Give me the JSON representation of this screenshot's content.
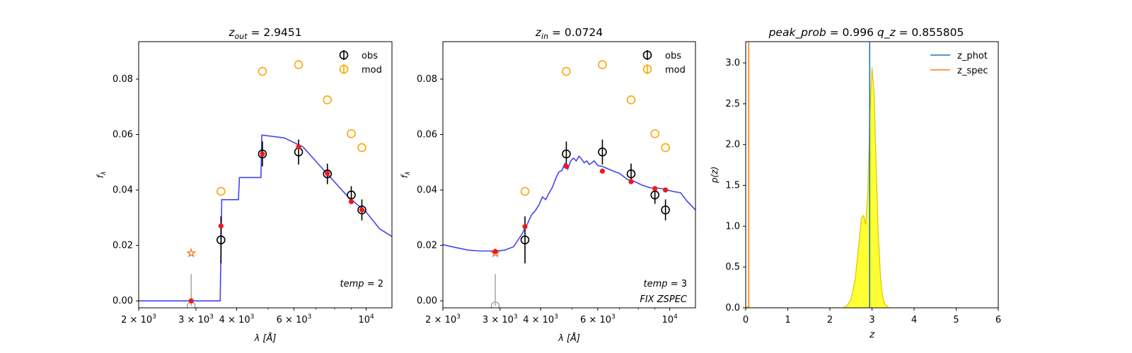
{
  "chart_data": [
    {
      "type": "scatter",
      "title_var": "z",
      "title_sub": "out",
      "title_value": "= 2.9451",
      "xlabel_sym": "λ",
      "xlabel_unit": "[Å]",
      "ylabel_sym": "f",
      "ylabel_sub": "λ",
      "x_scale": "log",
      "xlim": [
        2000,
        12000
      ],
      "ylim": [
        -0.0025,
        0.0935
      ],
      "x_ticks": [
        {
          "value": 2000,
          "base": "2 × 10",
          "exp": "3"
        },
        {
          "value": 3000,
          "base": "3 × 10",
          "exp": "3"
        },
        {
          "value": 4000,
          "base": "4 × 10",
          "exp": "3"
        },
        {
          "value": 6000,
          "base": "6 × 10",
          "exp": "3"
        },
        {
          "value": 10000,
          "base": "10",
          "exp": "4"
        }
      ],
      "y_ticks": [
        {
          "value": 0.0,
          "label": "0.00"
        },
        {
          "value": 0.02,
          "label": "0.02"
        },
        {
          "value": 0.04,
          "label": "0.04"
        },
        {
          "value": 0.06,
          "label": "0.06"
        },
        {
          "value": 0.08,
          "label": "0.08"
        }
      ],
      "legend": {
        "position": "top-right",
        "entries": [
          {
            "label": "obs",
            "color": "#000000"
          },
          {
            "label": "mod",
            "color": "#FFA500"
          }
        ]
      },
      "annotation_lines": [
        {
          "var": "temp",
          "value": "= 2"
        }
      ],
      "model_curve": {
        "color": "#3A3AF0",
        "points": [
          [
            2000,
            0.0
          ],
          [
            3560,
            0.0
          ],
          [
            3600,
            0.0365
          ],
          [
            4050,
            0.0365
          ],
          [
            4080,
            0.0445
          ],
          [
            4750,
            0.0445
          ],
          [
            4780,
            0.0598
          ],
          [
            5600,
            0.0588
          ],
          [
            6400,
            0.0555
          ],
          [
            7500,
            0.0465
          ],
          [
            8800,
            0.0375
          ],
          [
            10000,
            0.032
          ],
          [
            11000,
            0.026
          ],
          [
            12000,
            0.0232
          ]
        ]
      },
      "obs": [
        {
          "x": 2900,
          "y": -0.0018,
          "err": 0.0115,
          "upper_limit": true
        },
        {
          "x": 3580,
          "y": 0.022,
          "err": 0.0085
        },
        {
          "x": 4800,
          "y": 0.053,
          "err": 0.0045
        },
        {
          "x": 6200,
          "y": 0.0537,
          "err": 0.0045
        },
        {
          "x": 7600,
          "y": 0.0458,
          "err": 0.0037
        },
        {
          "x": 9000,
          "y": 0.0382,
          "err": 0.0032
        },
        {
          "x": 9700,
          "y": 0.0328,
          "err": 0.0038
        }
      ],
      "synthetic": [
        {
          "x": 2900,
          "y": 0.0
        },
        {
          "x": 3580,
          "y": 0.027
        },
        {
          "x": 4800,
          "y": 0.053
        },
        {
          "x": 6200,
          "y": 0.0555
        },
        {
          "x": 7600,
          "y": 0.046
        },
        {
          "x": 9000,
          "y": 0.0358
        },
        {
          "x": 9700,
          "y": 0.0328
        }
      ],
      "mod": [
        {
          "x": 3580,
          "y": 0.0395
        },
        {
          "x": 4800,
          "y": 0.0828
        },
        {
          "x": 6200,
          "y": 0.0852
        },
        {
          "x": 7600,
          "y": 0.0725
        },
        {
          "x": 9000,
          "y": 0.0603
        },
        {
          "x": 9700,
          "y": 0.0553
        }
      ],
      "star": {
        "x": 2900,
        "y": 0.0172
      }
    },
    {
      "type": "scatter",
      "title_var": "z",
      "title_sub": "in",
      "title_value": "= 0.0724",
      "xlabel_sym": "λ",
      "xlabel_unit": "[Å]",
      "ylabel_sym": "f",
      "ylabel_sub": "λ",
      "x_scale": "log",
      "xlim": [
        2000,
        12000
      ],
      "ylim": [
        -0.0025,
        0.0935
      ],
      "x_ticks": [
        {
          "value": 2000,
          "base": "2 × 10",
          "exp": "3"
        },
        {
          "value": 3000,
          "base": "3 × 10",
          "exp": "3"
        },
        {
          "value": 4000,
          "base": "4 × 10",
          "exp": "3"
        },
        {
          "value": 6000,
          "base": "6 × 10",
          "exp": "3"
        },
        {
          "value": 10000,
          "base": "10",
          "exp": "4"
        }
      ],
      "y_ticks": [
        {
          "value": 0.0,
          "label": "0.00"
        },
        {
          "value": 0.02,
          "label": "0.02"
        },
        {
          "value": 0.04,
          "label": "0.04"
        },
        {
          "value": 0.06,
          "label": "0.06"
        },
        {
          "value": 0.08,
          "label": "0.08"
        }
      ],
      "legend": {
        "position": "top-right",
        "entries": [
          {
            "label": "obs",
            "color": "#000000"
          },
          {
            "label": "mod",
            "color": "#FFA500"
          }
        ]
      },
      "annotation_lines": [
        {
          "var": "temp",
          "value": "= 3"
        },
        {
          "var": "FIX ZSPEC",
          "value": ""
        }
      ],
      "model_curve": {
        "color": "#3A3AF0",
        "points": [
          [
            2000,
            0.0203
          ],
          [
            2200,
            0.0192
          ],
          [
            2400,
            0.0183
          ],
          [
            2600,
            0.018
          ],
          [
            2900,
            0.018
          ],
          [
            3100,
            0.0183
          ],
          [
            3300,
            0.0195
          ],
          [
            3500,
            0.024
          ],
          [
            3650,
            0.028
          ],
          [
            3750,
            0.031
          ],
          [
            3850,
            0.0325
          ],
          [
            3950,
            0.0345
          ],
          [
            4050,
            0.0375
          ],
          [
            4150,
            0.0365
          ],
          [
            4250,
            0.039
          ],
          [
            4350,
            0.041
          ],
          [
            4450,
            0.044
          ],
          [
            4550,
            0.0465
          ],
          [
            4650,
            0.047
          ],
          [
            4750,
            0.0495
          ],
          [
            4850,
            0.0475
          ],
          [
            4950,
            0.0505
          ],
          [
            5050,
            0.0515
          ],
          [
            5150,
            0.0505
          ],
          [
            5250,
            0.0522
          ],
          [
            5350,
            0.0512
          ],
          [
            5450,
            0.0498
          ],
          [
            5550,
            0.0505
          ],
          [
            5650,
            0.0492
          ],
          [
            5750,
            0.0498
          ],
          [
            5850,
            0.0505
          ],
          [
            6000,
            0.0488
          ],
          [
            6200,
            0.0485
          ],
          [
            6400,
            0.0478
          ],
          [
            6700,
            0.0468
          ],
          [
            7000,
            0.046
          ],
          [
            7400,
            0.0438
          ],
          [
            7800,
            0.043
          ],
          [
            8200,
            0.0418
          ],
          [
            8700,
            0.0408
          ],
          [
            9200,
            0.0407
          ],
          [
            9700,
            0.0402
          ],
          [
            10200,
            0.0395
          ],
          [
            10800,
            0.039
          ],
          [
            11300,
            0.036
          ],
          [
            12000,
            0.0328
          ]
        ]
      },
      "obs": [
        {
          "x": 2900,
          "y": -0.0018,
          "err": 0.0115,
          "upper_limit": true
        },
        {
          "x": 3580,
          "y": 0.022,
          "err": 0.0085
        },
        {
          "x": 4800,
          "y": 0.053,
          "err": 0.0045
        },
        {
          "x": 6200,
          "y": 0.0537,
          "err": 0.0045
        },
        {
          "x": 7600,
          "y": 0.0458,
          "err": 0.0037
        },
        {
          "x": 9000,
          "y": 0.0382,
          "err": 0.0032
        },
        {
          "x": 9700,
          "y": 0.0328,
          "err": 0.0038
        }
      ],
      "synthetic": [
        {
          "x": 2900,
          "y": 0.0178
        },
        {
          "x": 3580,
          "y": 0.0268
        },
        {
          "x": 4800,
          "y": 0.0485
        },
        {
          "x": 6200,
          "y": 0.0468
        },
        {
          "x": 7600,
          "y": 0.043
        },
        {
          "x": 9000,
          "y": 0.0405
        },
        {
          "x": 9700,
          "y": 0.04
        }
      ],
      "mod": [
        {
          "x": 3580,
          "y": 0.0395
        },
        {
          "x": 4800,
          "y": 0.0828
        },
        {
          "x": 6200,
          "y": 0.0852
        },
        {
          "x": 7600,
          "y": 0.0725
        },
        {
          "x": 9000,
          "y": 0.0603
        },
        {
          "x": 9700,
          "y": 0.0553
        }
      ],
      "star": {
        "x": 2900,
        "y": 0.0172
      }
    },
    {
      "type": "line",
      "title_parts": [
        {
          "var": "peak_prob",
          "value": "= 0.996"
        },
        {
          "var": "q_z",
          "value": "= 0.855805"
        }
      ],
      "xlabel_sym": "z",
      "ylabel_sym": "p(z)",
      "xlim": [
        0,
        6
      ],
      "ylim": [
        0,
        3.26
      ],
      "x_ticks": [
        {
          "value": 0,
          "label": "0"
        },
        {
          "value": 1,
          "label": "1"
        },
        {
          "value": 2,
          "label": "2"
        },
        {
          "value": 3,
          "label": "3"
        },
        {
          "value": 4,
          "label": "4"
        },
        {
          "value": 5,
          "label": "5"
        },
        {
          "value": 6,
          "label": "6"
        }
      ],
      "y_ticks": [
        {
          "value": 0.0,
          "label": "0.0"
        },
        {
          "value": 0.5,
          "label": "0.5"
        },
        {
          "value": 1.0,
          "label": "1.0"
        },
        {
          "value": 1.5,
          "label": "1.5"
        },
        {
          "value": 2.0,
          "label": "2.0"
        },
        {
          "value": 2.5,
          "label": "2.5"
        },
        {
          "value": 3.0,
          "label": "3.0"
        }
      ],
      "legend": {
        "position": "top-right",
        "entries": [
          {
            "label": "z_phot",
            "color": "#1F77B4"
          },
          {
            "label": "z_spec",
            "color": "#FF7F0E"
          }
        ]
      },
      "z_phot": 2.9451,
      "z_spec": 0.0724,
      "pdf_fill": "#FFFF33",
      "pdf_line": "#D8C800",
      "pdf": [
        [
          0,
          0.0
        ],
        [
          0.05,
          0.02
        ],
        [
          0.1,
          0.0
        ],
        [
          2.3,
          0.0
        ],
        [
          2.4,
          0.02
        ],
        [
          2.5,
          0.1
        ],
        [
          2.6,
          0.35
        ],
        [
          2.7,
          0.85
        ],
        [
          2.75,
          1.1
        ],
        [
          2.8,
          1.13
        ],
        [
          2.85,
          1.02
        ],
        [
          2.9,
          1.4
        ],
        [
          2.95,
          2.35
        ],
        [
          3.0,
          2.95
        ],
        [
          3.05,
          2.6
        ],
        [
          3.1,
          1.7
        ],
        [
          3.15,
          0.9
        ],
        [
          3.2,
          0.4
        ],
        [
          3.25,
          0.15
        ],
        [
          3.3,
          0.05
        ],
        [
          3.4,
          0.0
        ],
        [
          5.0,
          0.0
        ]
      ]
    }
  ]
}
